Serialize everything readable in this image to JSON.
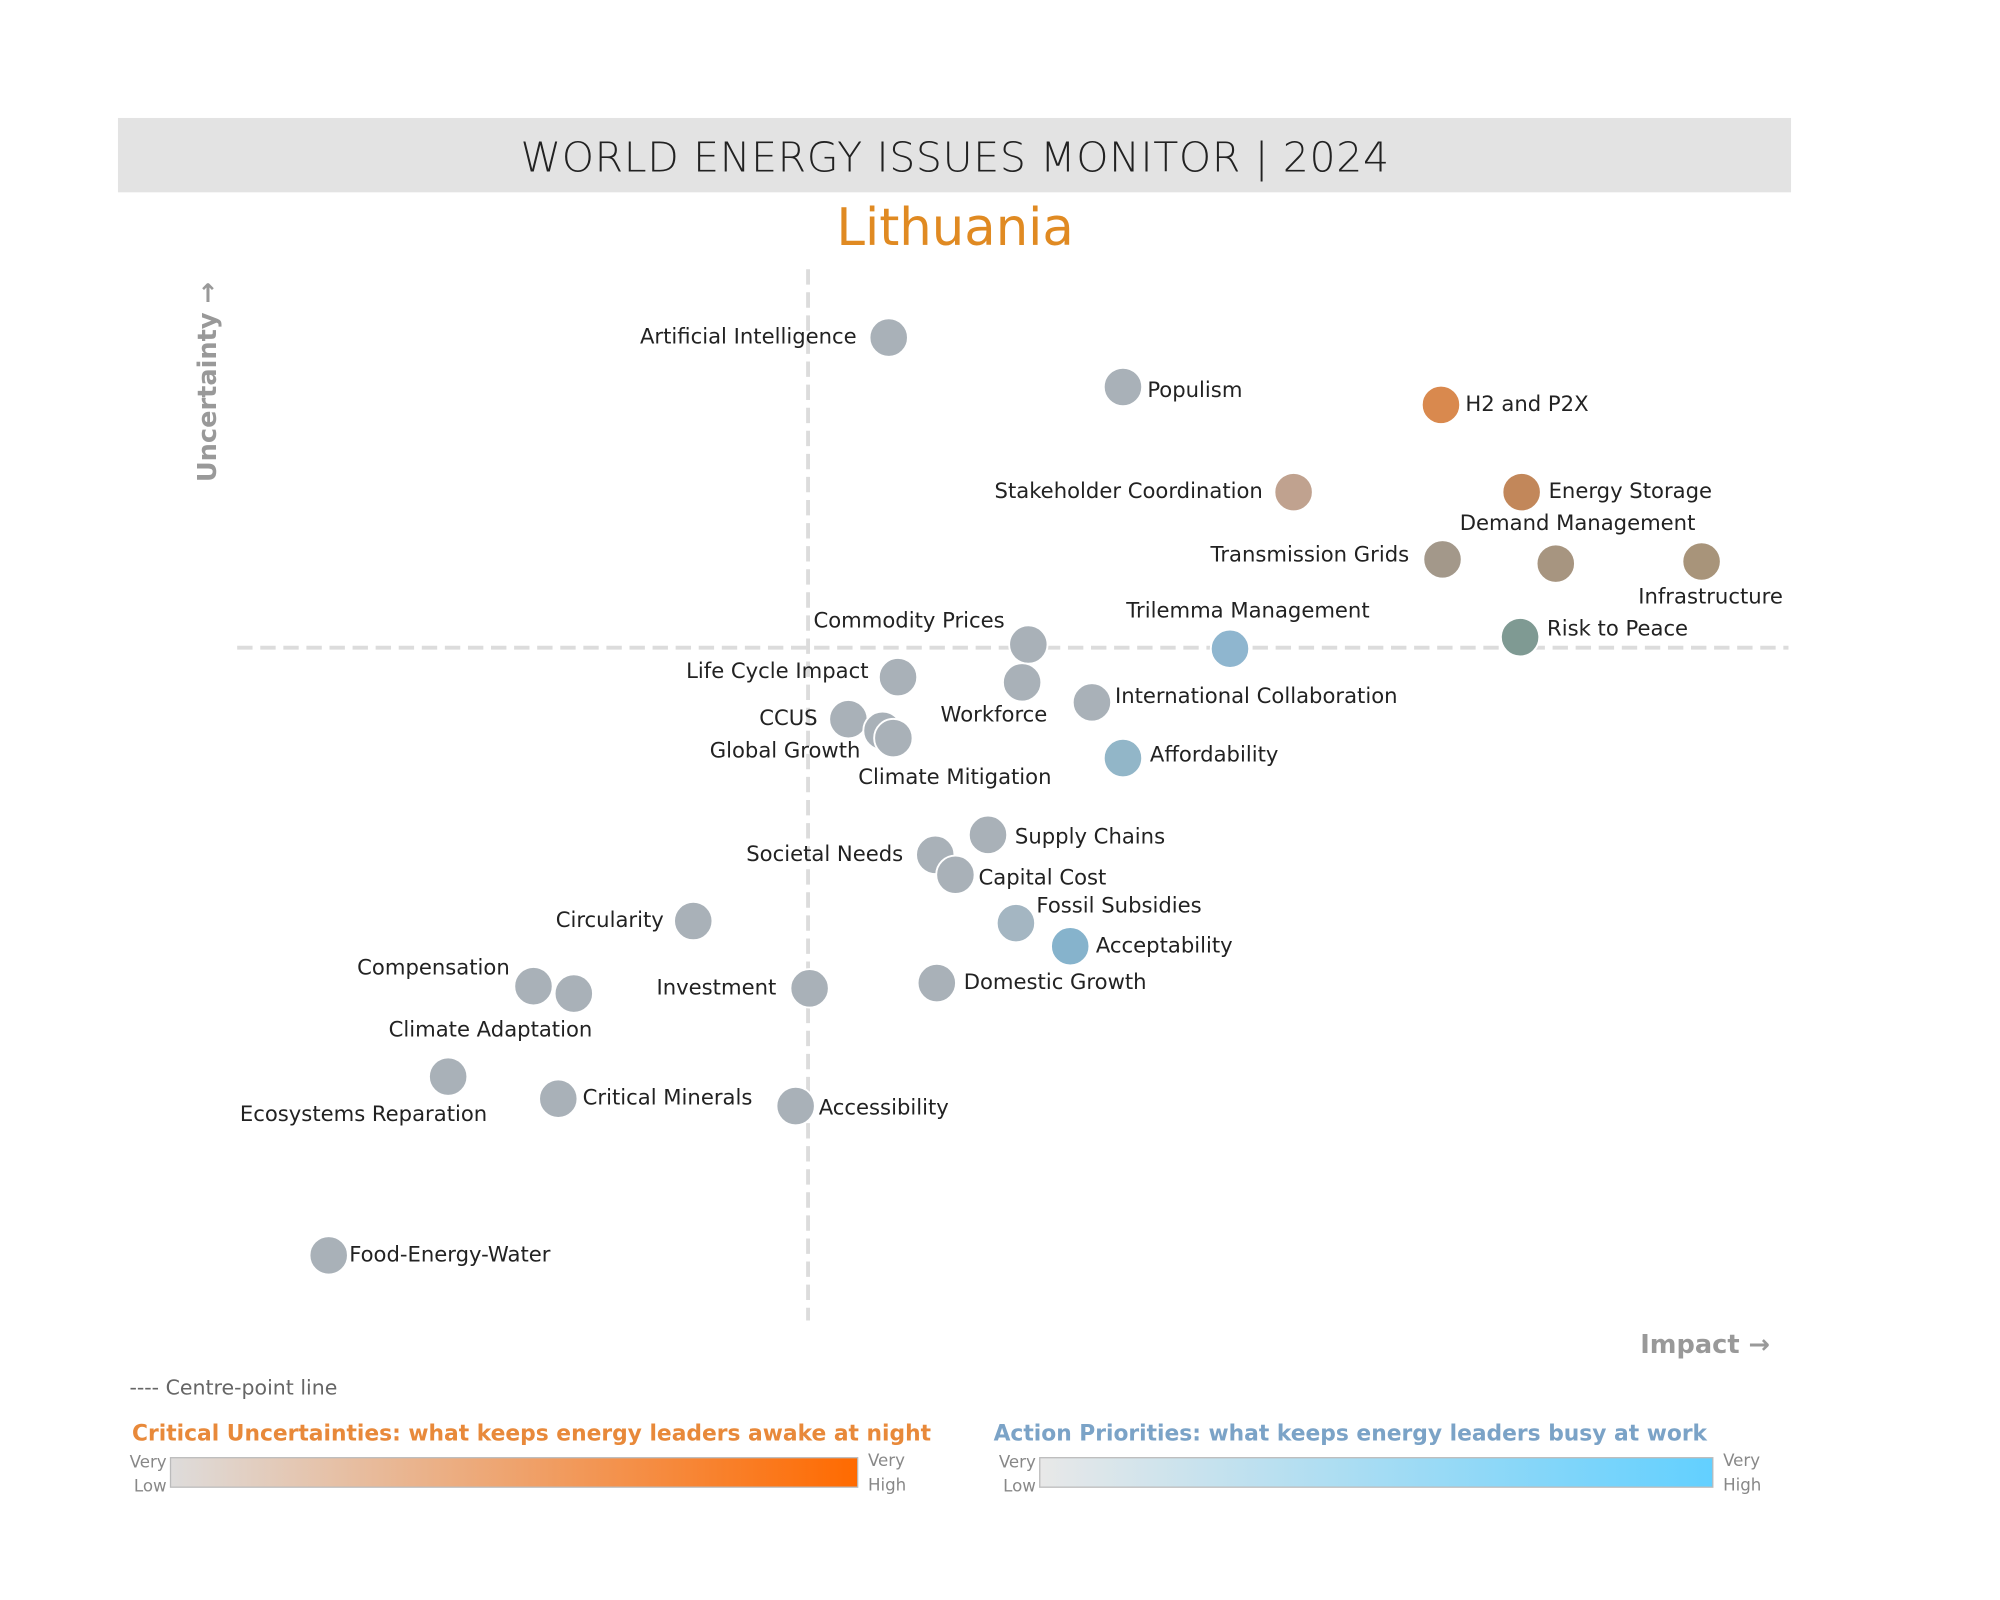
{
  "chart_data": {
    "type": "scatter",
    "title": "WORLD ENERGY ISSUES MONITOR | 2024",
    "subtitle": "Lithuania",
    "x_label": "Impact →",
    "y_label": "Uncertainty →",
    "xlim": [
      0,
      10
    ],
    "ylim": [
      0,
      10
    ],
    "centre": {
      "x": 3.68,
      "y": 6.4
    },
    "default_color": "#a9b1b8",
    "points": [
      {
        "name": "Artificial Intelligence",
        "x": 4.2,
        "y": 9.35
      },
      {
        "name": "Populism",
        "x": 5.71,
        "y": 8.88
      },
      {
        "name": "H2 and P2X",
        "x": 7.76,
        "y": 8.71,
        "color": "#d9894e"
      },
      {
        "name": "Stakeholder Coordination",
        "x": 6.81,
        "y": 7.88,
        "color": "#c0a28f"
      },
      {
        "name": "Energy Storage",
        "x": 8.28,
        "y": 7.88,
        "color": "#c2875a"
      },
      {
        "name": "Transmission Grids",
        "x": 7.77,
        "y": 7.24,
        "color": "#a3988a"
      },
      {
        "name": "Demand Management",
        "x": 8.5,
        "y": 7.2,
        "color": "#a79580"
      },
      {
        "name": "Infrastructure",
        "x": 9.44,
        "y": 7.22,
        "color": "#a8947a"
      },
      {
        "name": "Risk to Peace",
        "x": 8.27,
        "y": 6.5,
        "color": "#7f9a93"
      },
      {
        "name": "Trilemma Management",
        "x": 6.4,
        "y": 6.39,
        "color": "#8fb6cf"
      },
      {
        "name": "Commodity Prices",
        "x": 5.1,
        "y": 6.43
      },
      {
        "name": "Life Cycle Impact",
        "x": 4.26,
        "y": 6.12
      },
      {
        "name": "Workforce",
        "x": 5.06,
        "y": 6.07
      },
      {
        "name": "International Collaboration",
        "x": 5.51,
        "y": 5.88
      },
      {
        "name": "CCUS",
        "x": 3.94,
        "y": 5.72
      },
      {
        "name": "Global Growth",
        "x": 4.16,
        "y": 5.61
      },
      {
        "name": "Climate Mitigation",
        "x": 4.23,
        "y": 5.54
      },
      {
        "name": "Affordability",
        "x": 5.71,
        "y": 5.35,
        "color": "#92b6c8"
      },
      {
        "name": "Supply Chains",
        "x": 4.84,
        "y": 4.62
      },
      {
        "name": "Societal Needs",
        "x": 4.5,
        "y": 4.43
      },
      {
        "name": "Capital Cost",
        "x": 4.63,
        "y": 4.24
      },
      {
        "name": "Circularity",
        "x": 2.94,
        "y": 3.8
      },
      {
        "name": "Fossil Subsidies",
        "x": 5.02,
        "y": 3.78,
        "color": "#a4b6c2"
      },
      {
        "name": "Acceptability",
        "x": 5.37,
        "y": 3.56,
        "color": "#86b3cc"
      },
      {
        "name": "Compensation",
        "x": 1.91,
        "y": 3.18
      },
      {
        "name": "Climate Adaptation",
        "x": 2.17,
        "y": 3.11
      },
      {
        "name": "Investment",
        "x": 3.69,
        "y": 3.16
      },
      {
        "name": "Domestic Growth",
        "x": 4.51,
        "y": 3.21
      },
      {
        "name": "Ecosystems Reparation",
        "x": 1.36,
        "y": 2.32
      },
      {
        "name": "Critical Minerals",
        "x": 2.07,
        "y": 2.11
      },
      {
        "name": "Accessibility",
        "x": 3.6,
        "y": 2.04
      },
      {
        "name": "Food-Energy-Water",
        "x": 0.59,
        "y": 0.62
      }
    ],
    "centre_note": "---- Centre-point line",
    "legends": [
      {
        "title": "Critical Uncertainties: what keeps energy leaders awake at night",
        "color": "#e8893a",
        "from": "#dedcdb",
        "to": "#ff6a00",
        "low": [
          "Very",
          "Low"
        ],
        "high": [
          "Very",
          "High"
        ]
      },
      {
        "title": "Action Priorities: what keeps energy leaders busy at work",
        "color": "#7ba3c7",
        "from": "#e8e8e8",
        "to": "#62d0ff",
        "low": [
          "Very",
          "Low"
        ],
        "high": [
          "Very",
          "High"
        ]
      }
    ]
  }
}
